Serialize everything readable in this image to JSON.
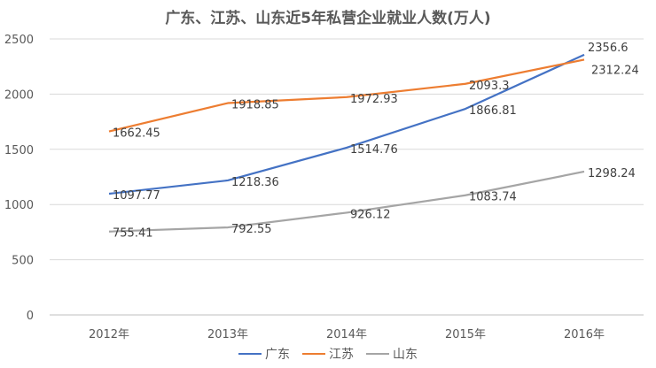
{
  "chart_data": {
    "type": "line",
    "title": "广东、江苏、山东近5年私营企业就业人数(万人)",
    "categories": [
      "2012年",
      "2013年",
      "2014年",
      "2015年",
      "2016年"
    ],
    "ylim": [
      0,
      2500
    ],
    "yticks": [
      "0",
      "500",
      "1000",
      "1500",
      "2000",
      "2500"
    ],
    "grid": true,
    "legend": "bottom",
    "series": [
      {
        "name": "广东",
        "color": "#4472c4",
        "values": [
          1097.77,
          1218.36,
          1514.76,
          1866.81,
          2356.6
        ],
        "labels": [
          "1097.77",
          "1218.36",
          "1514.76",
          "1866.81",
          "2356.6"
        ]
      },
      {
        "name": "江苏",
        "color": "#ed7d31",
        "values": [
          1662.45,
          1918.85,
          1972.93,
          2093.3,
          2312.24
        ],
        "labels": [
          "1662.45",
          "1918.85",
          "1972.93",
          "2093.3",
          "2312.24"
        ]
      },
      {
        "name": "山东",
        "color": "#a5a5a5",
        "values": [
          755.41,
          792.55,
          926.12,
          1083.74,
          1298.24
        ],
        "labels": [
          "755.41",
          "792.55",
          "926.12",
          "1083.74",
          "1298.24"
        ]
      }
    ]
  }
}
